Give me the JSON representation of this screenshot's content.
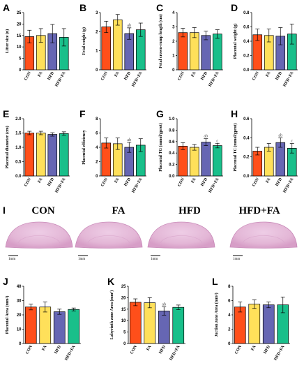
{
  "colors": [
    "#ff4f1a",
    "#ffe05a",
    "#6666b3",
    "#19bf8a"
  ],
  "categories": [
    "CON",
    "FA",
    "HFD",
    "HFD+FA"
  ],
  "histology": {
    "labels": [
      "CON",
      "FA",
      "HFD",
      "HFD+FA"
    ],
    "scale_bar": "1mm",
    "panel_letter": "I"
  },
  "chart_data": [
    {
      "id": "A",
      "type": "bar",
      "ylabel": "Litter size (n)",
      "ylim": [
        0,
        25
      ],
      "yticks": [
        0,
        5,
        10,
        15,
        20,
        25
      ],
      "categories": [
        "CON",
        "FA",
        "HFD",
        "HFD+FA"
      ],
      "values": [
        14.5,
        15,
        15.8,
        14.2
      ],
      "errors": [
        2.8,
        3,
        4,
        3.8
      ],
      "annotations": [
        "",
        "",
        "",
        ""
      ]
    },
    {
      "id": "B",
      "type": "bar",
      "ylabel": "Fetal weight (g)",
      "ylim": [
        0,
        3
      ],
      "yticks": [
        0,
        1,
        2,
        3
      ],
      "categories": [
        "CON",
        "FA",
        "HFD",
        "HFD+FA"
      ],
      "values": [
        2.25,
        2.62,
        1.9,
        2.1
      ],
      "errors": [
        0.3,
        0.28,
        0.3,
        0.35
      ],
      "annotations": [
        "",
        "",
        "ab",
        ""
      ]
    },
    {
      "id": "C",
      "type": "bar",
      "ylabel": "Fetal crown-rump length (cm)",
      "ylim": [
        0,
        4
      ],
      "yticks": [
        0,
        1,
        2,
        3,
        4
      ],
      "categories": [
        "CON",
        "FA",
        "HFD",
        "HFD+FA"
      ],
      "values": [
        2.6,
        2.6,
        2.4,
        2.5
      ],
      "errors": [
        0.3,
        0.35,
        0.3,
        0.3
      ],
      "annotations": [
        "",
        "",
        "",
        ""
      ]
    },
    {
      "id": "D",
      "type": "bar",
      "ylabel": "Placental weight (g)",
      "ylim": [
        0,
        0.8
      ],
      "yticks": [
        0.0,
        0.2,
        0.4,
        0.6,
        0.8
      ],
      "categories": [
        "CON",
        "FA",
        "HFD",
        "HFD+FA"
      ],
      "values": [
        0.49,
        0.48,
        0.47,
        0.5
      ],
      "errors": [
        0.08,
        0.09,
        0.12,
        0.14
      ],
      "annotations": [
        "",
        "",
        "",
        ""
      ]
    },
    {
      "id": "E",
      "type": "bar",
      "ylabel": "Placental diameter (cm)",
      "ylim": [
        0,
        2.0
      ],
      "yticks": [
        0.0,
        0.5,
        1.0,
        1.5,
        2.0
      ],
      "categories": [
        "CON",
        "FA",
        "HFD",
        "HFD+FA"
      ],
      "values": [
        1.5,
        1.5,
        1.45,
        1.48
      ],
      "errors": [
        0.06,
        0.06,
        0.06,
        0.06
      ],
      "annotations": [
        "",
        "",
        "",
        ""
      ]
    },
    {
      "id": "F",
      "type": "bar",
      "ylabel": "Placental efficiency",
      "ylim": [
        0,
        8
      ],
      "yticks": [
        0,
        2,
        4,
        6,
        8
      ],
      "categories": [
        "CON",
        "FA",
        "HFD",
        "HFD+FA"
      ],
      "values": [
        4.6,
        4.5,
        4.0,
        4.3
      ],
      "errors": [
        0.7,
        0.8,
        0.7,
        0.9
      ],
      "annotations": [
        "",
        "",
        "ab",
        ""
      ]
    },
    {
      "id": "G",
      "type": "bar",
      "ylabel": "Placental TG (mmol/gprot)",
      "ylim": [
        0,
        1.0
      ],
      "yticks": [
        0.0,
        0.2,
        0.4,
        0.6,
        0.8,
        1.0
      ],
      "categories": [
        "CON",
        "FA",
        "HFD",
        "HFD+FA"
      ],
      "values": [
        0.52,
        0.5,
        0.59,
        0.53
      ],
      "errors": [
        0.06,
        0.05,
        0.06,
        0.04
      ],
      "annotations": [
        "",
        "",
        "ab",
        "c"
      ]
    },
    {
      "id": "H",
      "type": "bar",
      "ylabel": "Placental TC (mmol/gprot)",
      "ylim": [
        0,
        0.6
      ],
      "yticks": [
        0.0,
        0.2,
        0.4,
        0.6
      ],
      "categories": [
        "CON",
        "FA",
        "HFD",
        "HFD+FA"
      ],
      "values": [
        0.26,
        0.3,
        0.35,
        0.29
      ],
      "errors": [
        0.04,
        0.04,
        0.05,
        0.05
      ],
      "annotations": [
        "",
        "",
        "ab",
        "c"
      ]
    },
    {
      "id": "J",
      "type": "bar",
      "ylabel": "Placental Area (mm²)",
      "ylim": [
        0,
        40
      ],
      "yticks": [
        0,
        10,
        20,
        30,
        40
      ],
      "categories": [
        "CON",
        "FA",
        "HFD",
        "HFD+FA"
      ],
      "values": [
        25.5,
        25.5,
        22.2,
        23.8
      ],
      "errors": [
        2,
        3.5,
        1.8,
        1
      ],
      "annotations": [
        "",
        "",
        "",
        ""
      ]
    },
    {
      "id": "K",
      "type": "bar",
      "ylabel": "Labyrinth zone Area (mm²)",
      "ylim": [
        0,
        25
      ],
      "yticks": [
        0,
        5,
        10,
        15,
        20,
        25
      ],
      "categories": [
        "CON",
        "FA",
        "HFD",
        "HFD+FA"
      ],
      "values": [
        18,
        17.8,
        14.2,
        15.8
      ],
      "errors": [
        1.5,
        2.2,
        1.8,
        1
      ],
      "annotations": [
        "",
        "",
        "ab",
        ""
      ]
    },
    {
      "id": "L",
      "type": "bar",
      "ylabel": "Juction zone Area (mm²)",
      "ylim": [
        0,
        8
      ],
      "yticks": [
        0,
        2,
        4,
        6,
        8
      ],
      "categories": [
        "CON",
        "FA",
        "HFD",
        "HFD+FA"
      ],
      "values": [
        5.1,
        5.5,
        5.4,
        5.4
      ],
      "errors": [
        0.7,
        0.6,
        0.4,
        1.1
      ],
      "annotations": [
        "",
        "",
        "",
        ""
      ]
    }
  ]
}
